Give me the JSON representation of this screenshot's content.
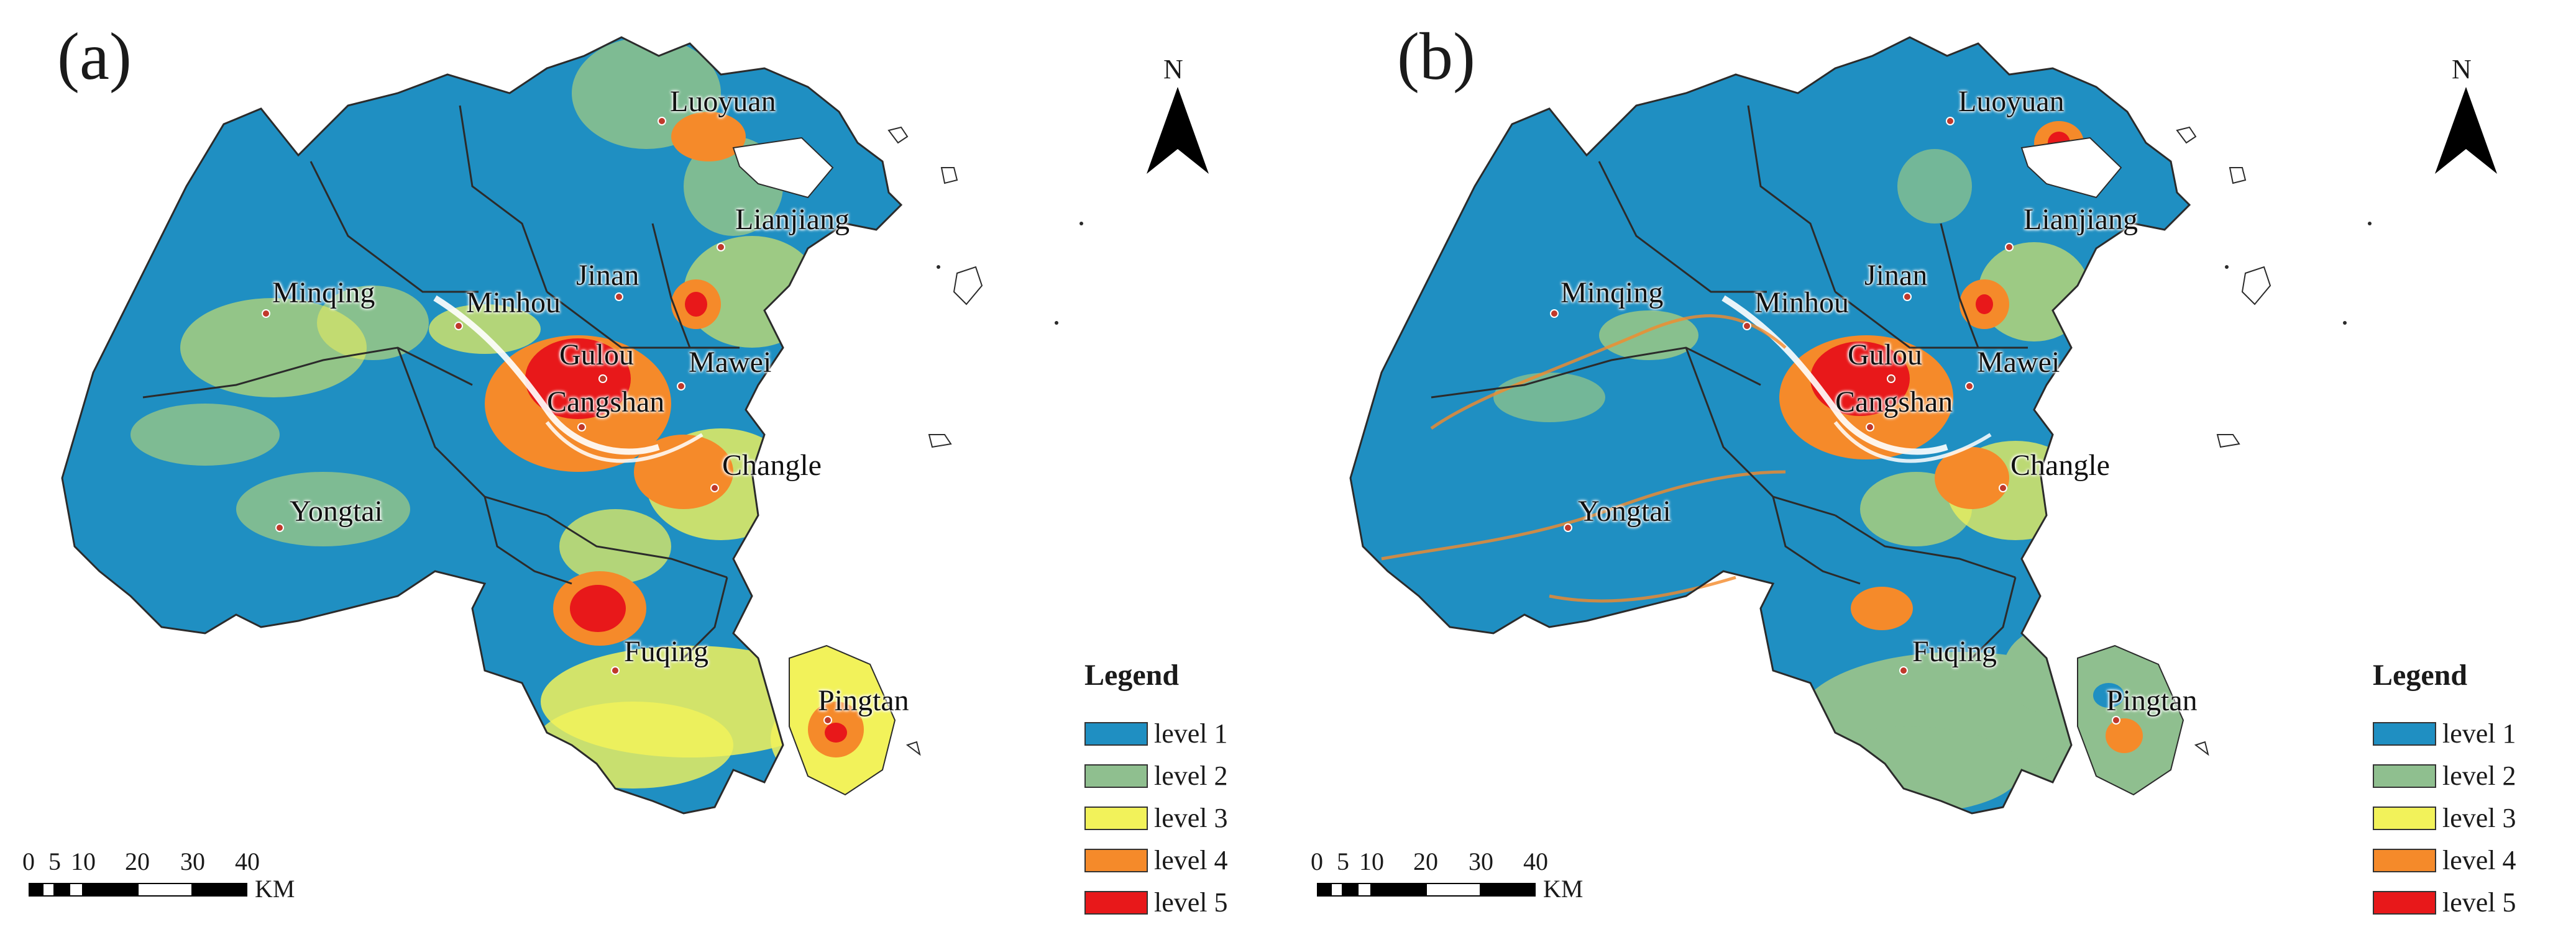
{
  "panels": [
    {
      "letter": "(a)",
      "north": "N",
      "cities": [
        "Luoyuan",
        "Lianjiang",
        "Minqing",
        "Minhou",
        "Jinan",
        "Gulou",
        "Mawei",
        "Cangshan",
        "Changle",
        "Yongtai",
        "Fuqing",
        "Pingtan"
      ],
      "legend_title": "Legend",
      "legend": [
        "level 1",
        "level 2",
        "level 3",
        "level 4",
        "level 5"
      ],
      "scale_ticks": [
        "0",
        "5",
        "10",
        "20",
        "30",
        "40"
      ],
      "scale_unit": "KM"
    },
    {
      "letter": "(b)",
      "north": "N",
      "cities": [
        "Luoyuan",
        "Lianjiang",
        "Minqing",
        "Minhou",
        "Jinan",
        "Gulou",
        "Mawei",
        "Cangshan",
        "Changle",
        "Yongtai",
        "Fuqing",
        "Pingtan"
      ],
      "legend_title": "Legend",
      "legend": [
        "level 1",
        "level 2",
        "level 3",
        "level 4",
        "level 5"
      ],
      "scale_ticks": [
        "0",
        "5",
        "10",
        "20",
        "30",
        "40"
      ],
      "scale_unit": "KM"
    }
  ],
  "colors": {
    "level1": "#1f8fc2",
    "level2": "#8fbf8f",
    "level3": "#f2f25a",
    "level4": "#f58a2a",
    "level5": "#e8181a",
    "boundary": "#2b2b2b",
    "city_dot": "#c0392b"
  }
}
